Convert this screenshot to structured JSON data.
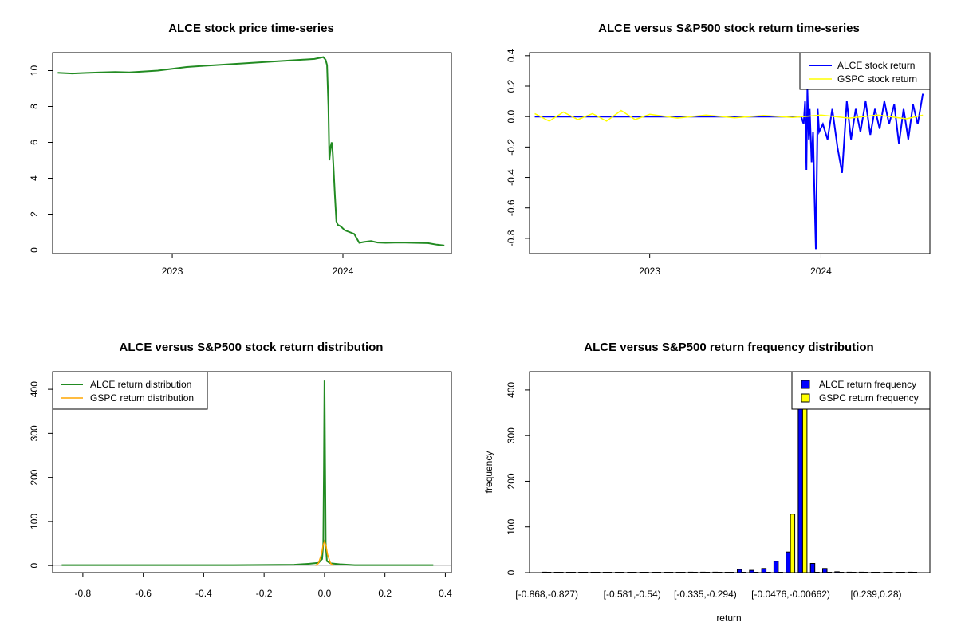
{
  "colors": {
    "price_line": "#228B22",
    "alce_return": "#0000FF",
    "gspc_return": "#FFFF00",
    "gspc_density": "#FFA500",
    "bar_border": "#000000"
  },
  "chart_data": [
    {
      "id": "price",
      "type": "line",
      "title": "ALCE stock price time-series",
      "xlabel": "",
      "ylabel": "",
      "x_ticks": [
        "2023",
        "2024"
      ],
      "y_ticks": [
        0,
        2,
        4,
        6,
        8,
        10
      ],
      "xlim": [
        "2022-04-20",
        "2024-08-20"
      ],
      "ylim": [
        -0.2,
        11.0
      ],
      "grid": false,
      "series": [
        {
          "color": "#228B22",
          "x": [
            "2022-05-01",
            "2022-06-01",
            "2022-07-01",
            "2022-08-01",
            "2022-09-01",
            "2022-10-01",
            "2022-11-01",
            "2022-12-01",
            "2023-01-01",
            "2023-02-01",
            "2023-03-01",
            "2023-04-01",
            "2023-05-01",
            "2023-06-01",
            "2023-07-01",
            "2023-08-01",
            "2023-09-01",
            "2023-10-01",
            "2023-11-01",
            "2023-11-20",
            "2023-11-25",
            "2023-11-28",
            "2023-12-01",
            "2023-12-03",
            "2023-12-06",
            "2023-12-08",
            "2023-12-10",
            "2023-12-12",
            "2023-12-15",
            "2023-12-18",
            "2023-12-21",
            "2023-12-25",
            "2023-12-28",
            "2024-01-05",
            "2024-01-15",
            "2024-01-25",
            "2024-02-05",
            "2024-02-15",
            "2024-03-01",
            "2024-03-15",
            "2024-04-01",
            "2024-05-01",
            "2024-06-01",
            "2024-07-01",
            "2024-07-20",
            "2024-08-05"
          ],
          "y": [
            9.88,
            9.84,
            9.87,
            9.9,
            9.92,
            9.9,
            9.95,
            10.0,
            10.1,
            10.2,
            10.25,
            10.3,
            10.35,
            10.4,
            10.45,
            10.5,
            10.55,
            10.6,
            10.65,
            10.75,
            10.6,
            10.3,
            8.0,
            5.0,
            5.8,
            6.0,
            5.5,
            4.5,
            3.0,
            1.6,
            1.4,
            1.35,
            1.3,
            1.1,
            1.0,
            0.9,
            0.4,
            0.45,
            0.5,
            0.42,
            0.4,
            0.42,
            0.4,
            0.38,
            0.3,
            0.25
          ]
        }
      ]
    },
    {
      "id": "returns",
      "type": "line",
      "title": "ALCE versus S&P500 stock return time-series",
      "xlabel": "",
      "ylabel": "",
      "x_ticks": [
        "2023",
        "2024"
      ],
      "y_ticks": [
        -0.8,
        -0.6,
        -0.4,
        -0.2,
        0.0,
        0.2,
        0.4
      ],
      "y_tick_labels": [
        "-0.8",
        "-0.6",
        "-0.4",
        "-0.2",
        "0.0",
        "0.2",
        "0.4"
      ],
      "xlim": [
        "2022-04-20",
        "2024-08-20"
      ],
      "ylim": [
        -0.9,
        0.42
      ],
      "grid": false,
      "legend_position": "top-right",
      "legend": [
        "ALCE stock return",
        "GSPC stock return"
      ],
      "series": [
        {
          "name": "ALCE stock return",
          "color": "#0000FF",
          "x": [
            "2022-05-01",
            "2023-11-20",
            "2023-11-25",
            "2023-11-28",
            "2023-12-01",
            "2023-12-03",
            "2023-12-06",
            "2023-12-08",
            "2023-12-12",
            "2023-12-15",
            "2023-12-18",
            "2023-12-21",
            "2023-12-25",
            "2023-12-28",
            "2024-01-05",
            "2024-01-15",
            "2024-01-25",
            "2024-02-05",
            "2024-02-15",
            "2024-02-25",
            "2024-03-05",
            "2024-03-15",
            "2024-03-25",
            "2024-04-05",
            "2024-04-15",
            "2024-04-25",
            "2024-05-05",
            "2024-05-15",
            "2024-05-25",
            "2024-06-05",
            "2024-06-15",
            "2024-06-25",
            "2024-07-05",
            "2024-07-15",
            "2024-07-25",
            "2024-08-05"
          ],
          "y": [
            0.0,
            0.0,
            -0.05,
            0.1,
            -0.35,
            0.18,
            -0.15,
            0.05,
            -0.3,
            -0.1,
            -0.5,
            -0.87,
            0.05,
            -0.1,
            -0.05,
            -0.15,
            0.05,
            -0.2,
            -0.37,
            0.1,
            -0.15,
            0.05,
            -0.1,
            0.1,
            -0.12,
            0.05,
            -0.08,
            0.1,
            -0.05,
            0.08,
            -0.18,
            0.05,
            -0.15,
            0.08,
            -0.05,
            0.15
          ]
        },
        {
          "name": "GSPC stock return",
          "color": "#FFFF00",
          "x": [
            "2022-05-01",
            "2022-06-01",
            "2022-07-01",
            "2022-08-01",
            "2022-09-01",
            "2022-10-01",
            "2022-11-01",
            "2022-12-01",
            "2023-01-01",
            "2023-03-01",
            "2023-05-01",
            "2023-07-01",
            "2023-09-01",
            "2023-11-01",
            "2024-01-01",
            "2024-03-01",
            "2024-05-01",
            "2024-07-01",
            "2024-08-05"
          ],
          "y": [
            0.02,
            -0.03,
            0.03,
            -0.02,
            0.02,
            -0.03,
            0.04,
            -0.02,
            0.015,
            -0.01,
            0.01,
            -0.008,
            0.008,
            -0.006,
            0.01,
            -0.01,
            0.01,
            -0.015,
            0.01
          ]
        }
      ]
    },
    {
      "id": "density",
      "type": "line",
      "title": "ALCE versus S&P500 stock return distribution",
      "xlabel": "",
      "ylabel": "",
      "x_ticks": [
        -0.8,
        -0.6,
        -0.4,
        -0.2,
        0.0,
        0.2,
        0.4
      ],
      "x_tick_labels": [
        "-0.8",
        "-0.6",
        "-0.4",
        "-0.2",
        "0.0",
        "0.2",
        "0.4"
      ],
      "y_ticks": [
        0,
        100,
        200,
        300,
        400
      ],
      "xlim": [
        -0.9,
        0.42
      ],
      "ylim": [
        -16,
        440
      ],
      "grid": false,
      "legend_position": "top-left",
      "legend": [
        "ALCE return distribution",
        "GSPC return distribution"
      ],
      "series": [
        {
          "name": "ALCE return distribution",
          "color": "#228B22",
          "x": [
            -0.87,
            -0.6,
            -0.3,
            -0.1,
            -0.05,
            -0.02,
            -0.008,
            -0.004,
            -0.002,
            0.0,
            0.002,
            0.004,
            0.008,
            0.02,
            0.05,
            0.1,
            0.2,
            0.36
          ],
          "y": [
            1,
            1,
            1,
            2,
            4,
            6,
            15,
            50,
            220,
            420,
            220,
            50,
            10,
            5,
            3,
            1,
            1,
            1
          ]
        },
        {
          "name": "GSPC return distribution",
          "color": "#FFA500",
          "x": [
            -0.03,
            -0.02,
            -0.01,
            -0.005,
            0.0,
            0.005,
            0.01,
            0.02,
            0.03
          ],
          "y": [
            0,
            5,
            25,
            45,
            55,
            45,
            25,
            5,
            0
          ]
        }
      ]
    },
    {
      "id": "histogram",
      "type": "bar",
      "title": "ALCE versus S&P500 return frequency distribution",
      "xlabel": "return",
      "ylabel": "frequency",
      "x_tick_labels": [
        "[-0.868,-0.827)",
        "[-0.581,-0.54)",
        "[-0.335,-0.294)",
        "[-0.0476,-0.00662)",
        "[0.239,0.28)"
      ],
      "x_tick_bins": [
        0,
        7,
        13,
        20,
        27
      ],
      "y_ticks": [
        0,
        100,
        200,
        300,
        400
      ],
      "ylim": [
        0,
        440
      ],
      "grid": false,
      "legend_position": "top-right",
      "legend": [
        "ALCE return frequency",
        "GSPC return frequency"
      ],
      "series": [
        {
          "name": "ALCE return frequency",
          "color": "#0000FF",
          "values": [
            1,
            0,
            0,
            0,
            0,
            0,
            0,
            0,
            0,
            0,
            0,
            0,
            1,
            1,
            1,
            0,
            7,
            5,
            9,
            25,
            45,
            420,
            20,
            9,
            2,
            1,
            1,
            0,
            0,
            0,
            1
          ]
        },
        {
          "name": "GSPC return frequency",
          "color": "#FFFF00",
          "values": [
            0,
            0,
            0,
            0,
            0,
            0,
            0,
            0,
            0,
            0,
            0,
            0,
            0,
            0,
            0,
            0,
            0,
            0,
            0,
            0,
            128,
            430,
            0,
            0,
            0,
            0,
            0,
            0,
            0,
            0,
            0
          ]
        }
      ]
    }
  ]
}
